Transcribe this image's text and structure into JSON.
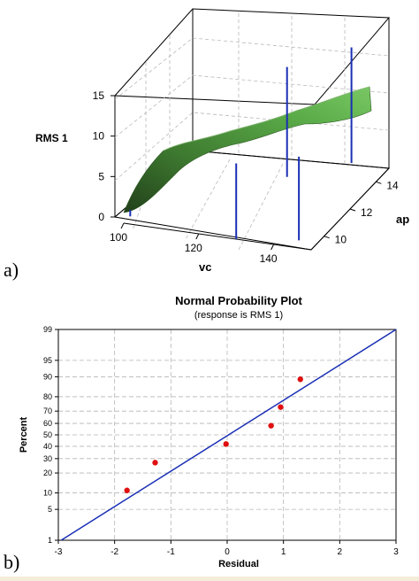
{
  "panel_labels": {
    "a": "a)",
    "b": "b)"
  },
  "chart_data": [
    {
      "type": "surface",
      "z_label": "RMS 1",
      "x_label": "vc",
      "y_label": "ap",
      "z_ticks": [
        "0",
        "5",
        "10",
        "15"
      ],
      "x_ticks": [
        "100",
        "120",
        "140"
      ],
      "y_ticks": [
        "10",
        "12",
        "14"
      ],
      "zlim": [
        0,
        15
      ],
      "xlim": [
        100,
        150
      ],
      "ylim": [
        9,
        15
      ],
      "surface_color": "#4e9a3e",
      "drop_line_color": "#1a2fb5",
      "surface_corners": {
        "vc100_ap9": 0.5,
        "vc150_ap9": 10.5,
        "vc100_ap15": 9.0,
        "vc150_ap15": 14.0
      },
      "design_points": [
        {
          "vc": 100,
          "ap": 9.5,
          "rms": 0.8
        },
        {
          "vc": 130,
          "ap": 9.0,
          "rms": 9.5
        },
        {
          "vc": 145,
          "ap": 9.5,
          "rms": 10.5
        },
        {
          "vc": 128,
          "ap": 13.5,
          "rms": 13.8
        },
        {
          "vc": 140,
          "ap": 15.0,
          "rms": 14.5
        }
      ]
    },
    {
      "type": "scatter",
      "title": "Normal Probability Plot",
      "subtitle": "(response is RMS 1)",
      "xlabel": "Residual",
      "ylabel": "Percent",
      "x_ticks": [
        "-3",
        "-2",
        "-1",
        "0",
        "1",
        "2",
        "3"
      ],
      "y_ticks": [
        "1",
        "5",
        "10",
        "20",
        "30",
        "40",
        "50",
        "60",
        "70",
        "80",
        "90",
        "95",
        "99"
      ],
      "xlim": [
        -3,
        3
      ],
      "ylim": [
        1,
        99
      ],
      "y_scale": "normal-probability",
      "grid": true,
      "point_color": "#e01010",
      "line_color": "#1a2fb5",
      "points": [
        {
          "x": -1.78,
          "y": 11
        },
        {
          "x": -1.28,
          "y": 27
        },
        {
          "x": -0.02,
          "y": 42
        },
        {
          "x": 0.78,
          "y": 58
        },
        {
          "x": 0.95,
          "y": 73
        },
        {
          "x": 1.3,
          "y": 89
        }
      ],
      "fit_line": {
        "x": [
          -2.95,
          3.0
        ],
        "y": [
          1,
          99
        ]
      }
    }
  ]
}
